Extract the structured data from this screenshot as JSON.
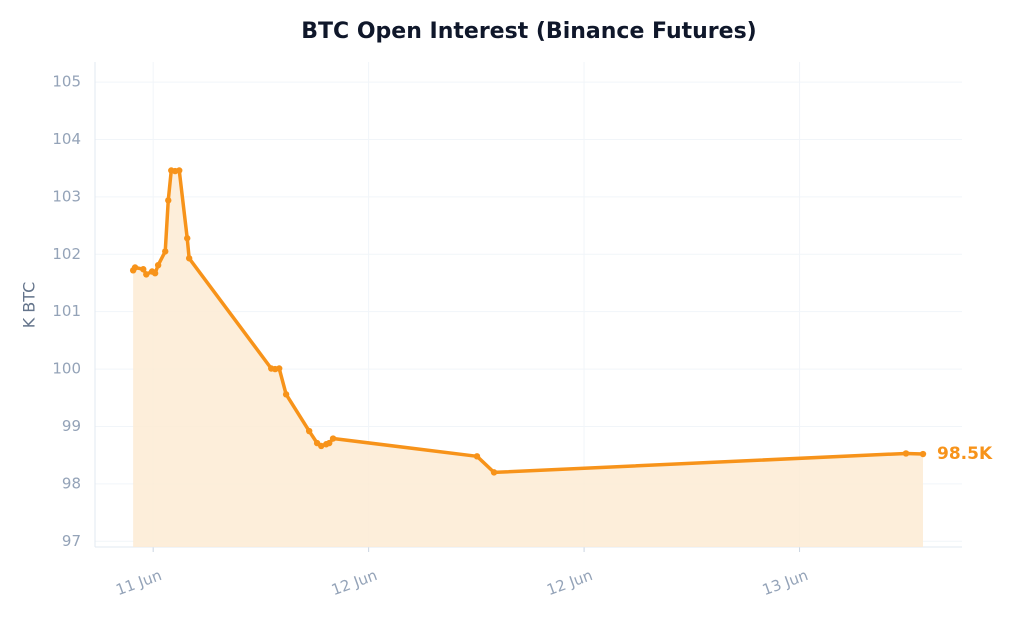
{
  "chart_data": {
    "type": "line",
    "title": "BTC Open Interest (Binance Futures)",
    "y_label": "K BTC",
    "x": [
      -0.093,
      -0.084,
      -0.046,
      -0.032,
      -0.005,
      0.009,
      0.023,
      0.056,
      0.07,
      0.084,
      0.102,
      0.121,
      0.158,
      0.167,
      0.548,
      0.566,
      0.585,
      0.617,
      0.724,
      0.761,
      0.78,
      0.803,
      0.817,
      0.835,
      1.503,
      1.582,
      3.494,
      3.573
    ],
    "series": [
      {
        "name": "Open Interest",
        "color": "#f7931a",
        "values": [
          101.72,
          101.77,
          101.74,
          101.65,
          101.7,
          101.67,
          101.81,
          102.05,
          102.94,
          103.46,
          103.45,
          103.46,
          102.28,
          101.93,
          100.01,
          100.0,
          100.01,
          99.56,
          98.92,
          98.71,
          98.66,
          98.69,
          98.71,
          98.79,
          98.48,
          98.2,
          98.53,
          98.52
        ],
        "value_labels": [
          null,
          null,
          null,
          null,
          null,
          null,
          null,
          null,
          null,
          null,
          null,
          null,
          null,
          null,
          null,
          null,
          null,
          null,
          null,
          null,
          null,
          null,
          null,
          null,
          null,
          null,
          null,
          "98.5K"
        ]
      }
    ],
    "xlim": [
      -0.27,
      3.754
    ],
    "ylim": [
      96.9,
      105.35
    ],
    "xticks": [
      {
        "value": 0,
        "label": "11 Jun"
      },
      {
        "value": 1,
        "label": "12 Jun"
      },
      {
        "value": 2,
        "label": "12 Jun"
      },
      {
        "value": 3,
        "label": "13 Jun"
      }
    ],
    "yticks": [
      97,
      98,
      99,
      100,
      101,
      102,
      103,
      104,
      105
    ],
    "grid": true,
    "area_fill": "#fdebd3"
  }
}
